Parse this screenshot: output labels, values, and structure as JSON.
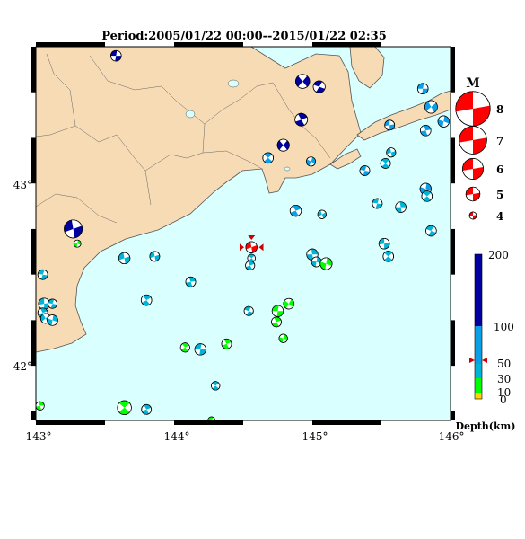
{
  "title": "Period:2005/01/22 00:00--2015/01/22 02:35",
  "axes": {
    "lon_ticks": [
      "143°",
      "144°",
      "145°",
      "146°"
    ],
    "lat_ticks": [
      "43°",
      "42°"
    ]
  },
  "colors": {
    "land": "#f7dbb4",
    "sea": "#d9ffff",
    "coast": "#555555",
    "shallow": "#00ff00",
    "mid": "#00b4d8",
    "deep": "#0aa0e8",
    "verydeep": "#0000a0",
    "highlight": "#ff0000",
    "nodal": "#ffffff"
  },
  "magnitude_legend": {
    "title": "M",
    "entries": [
      {
        "label": "8",
        "mag": 8
      },
      {
        "label": "7",
        "mag": 7
      },
      {
        "label": "6",
        "mag": 6
      },
      {
        "label": "5",
        "mag": 5
      },
      {
        "label": "4",
        "mag": 4
      }
    ]
  },
  "depth_legend": {
    "unit_label": "Depth(km)",
    "ticks": [
      "200",
      "100",
      "50",
      "30",
      "10",
      "0"
    ],
    "marker_depth": 47
  },
  "events": [
    {
      "lon": 143.58,
      "lat": 43.7,
      "depth": 140,
      "mag": 4.5,
      "rot": 20
    },
    {
      "lon": 144.93,
      "lat": 43.56,
      "depth": 150,
      "mag": 5.0,
      "rot": -30
    },
    {
      "lon": 145.05,
      "lat": 43.53,
      "depth": 160,
      "mag": 4.7,
      "rot": 40
    },
    {
      "lon": 145.8,
      "lat": 43.52,
      "depth": 70,
      "mag": 4.5,
      "rot": 200
    },
    {
      "lon": 145.86,
      "lat": 43.42,
      "depth": 70,
      "mag": 4.8,
      "rot": 160
    },
    {
      "lon": 145.95,
      "lat": 43.34,
      "depth": 70,
      "mag": 4.6,
      "rot": 120
    },
    {
      "lon": 145.82,
      "lat": 43.29,
      "depth": 70,
      "mag": 4.5,
      "rot": 90
    },
    {
      "lon": 145.56,
      "lat": 43.32,
      "depth": 70,
      "mag": 4.4,
      "rot": 10
    },
    {
      "lon": 144.92,
      "lat": 43.35,
      "depth": 150,
      "mag": 4.8,
      "rot": 80
    },
    {
      "lon": 144.79,
      "lat": 43.21,
      "depth": 150,
      "mag": 4.7,
      "rot": 150
    },
    {
      "lon": 144.68,
      "lat": 43.14,
      "depth": 70,
      "mag": 4.5,
      "rot": 60
    },
    {
      "lon": 144.99,
      "lat": 43.12,
      "depth": 70,
      "mag": 4.3,
      "rot": 130
    },
    {
      "lon": 145.38,
      "lat": 43.07,
      "depth": 70,
      "mag": 4.4,
      "rot": 30
    },
    {
      "lon": 145.57,
      "lat": 43.17,
      "depth": 45,
      "mag": 4.3,
      "rot": 180
    },
    {
      "lon": 145.53,
      "lat": 43.11,
      "depth": 45,
      "mag": 4.4,
      "rot": 60
    },
    {
      "lon": 145.82,
      "lat": 42.97,
      "depth": 70,
      "mag": 4.6,
      "rot": 120
    },
    {
      "lon": 145.83,
      "lat": 42.93,
      "depth": 45,
      "mag": 4.5,
      "rot": 60
    },
    {
      "lon": 145.47,
      "lat": 42.89,
      "depth": 45,
      "mag": 4.4,
      "rot": 30
    },
    {
      "lon": 145.64,
      "lat": 42.87,
      "depth": 45,
      "mag": 4.5,
      "rot": 100
    },
    {
      "lon": 144.88,
      "lat": 42.85,
      "depth": 70,
      "mag": 4.6,
      "rot": 80
    },
    {
      "lon": 145.07,
      "lat": 42.83,
      "depth": 45,
      "mag": 4.2,
      "rot": 170
    },
    {
      "lon": 143.27,
      "lat": 42.75,
      "depth": 160,
      "mag": 5.6,
      "rot": 0
    },
    {
      "lon": 143.3,
      "lat": 42.67,
      "depth": 25,
      "mag": 4.0,
      "rot": 120
    },
    {
      "lon": 145.86,
      "lat": 42.74,
      "depth": 45,
      "mag": 4.5,
      "rot": 40
    },
    {
      "lon": 145.52,
      "lat": 42.67,
      "depth": 45,
      "mag": 4.5,
      "rot": 10
    },
    {
      "lon": 145.55,
      "lat": 42.6,
      "depth": 45,
      "mag": 4.5,
      "rot": 60
    },
    {
      "lon": 145.0,
      "lat": 42.61,
      "depth": 45,
      "mag": 4.6,
      "rot": 100
    },
    {
      "lon": 145.03,
      "lat": 42.57,
      "depth": 45,
      "mag": 4.4,
      "rot": 120
    },
    {
      "lon": 145.1,
      "lat": 42.56,
      "depth": 25,
      "mag": 4.7,
      "rot": 120
    },
    {
      "lon": 143.64,
      "lat": 42.59,
      "depth": 45,
      "mag": 4.6,
      "rot": 0
    },
    {
      "lon": 143.86,
      "lat": 42.6,
      "depth": 45,
      "mag": 4.4,
      "rot": 180
    },
    {
      "lon": 144.56,
      "lat": 42.65,
      "depth": 47,
      "mag": 4.6,
      "rot": 0,
      "highlight": true
    },
    {
      "lon": 144.56,
      "lat": 42.59,
      "depth": 45,
      "mag": 4.1,
      "rot": 60
    },
    {
      "lon": 144.55,
      "lat": 42.55,
      "depth": 45,
      "mag": 4.3,
      "rot": 80
    },
    {
      "lon": 143.05,
      "lat": 42.5,
      "depth": 45,
      "mag": 4.4,
      "rot": 30
    },
    {
      "lon": 144.12,
      "lat": 42.46,
      "depth": 45,
      "mag": 4.4,
      "rot": 90
    },
    {
      "lon": 143.8,
      "lat": 42.36,
      "depth": 45,
      "mag": 4.5,
      "rot": 70
    },
    {
      "lon": 143.06,
      "lat": 42.34,
      "depth": 45,
      "mag": 4.6,
      "rot": 10
    },
    {
      "lon": 143.12,
      "lat": 42.34,
      "depth": 45,
      "mag": 4.3,
      "rot": 30
    },
    {
      "lon": 143.05,
      "lat": 42.29,
      "depth": 45,
      "mag": 4.4,
      "rot": 80
    },
    {
      "lon": 143.07,
      "lat": 42.26,
      "depth": 45,
      "mag": 4.4,
      "rot": 160
    },
    {
      "lon": 143.12,
      "lat": 42.25,
      "depth": 45,
      "mag": 4.5,
      "rot": 120
    },
    {
      "lon": 144.54,
      "lat": 42.3,
      "depth": 45,
      "mag": 4.3,
      "rot": 40
    },
    {
      "lon": 144.83,
      "lat": 42.34,
      "depth": 25,
      "mag": 4.5,
      "rot": 140
    },
    {
      "lon": 144.75,
      "lat": 42.3,
      "depth": 25,
      "mag": 4.6,
      "rot": 20
    },
    {
      "lon": 144.74,
      "lat": 42.24,
      "depth": 25,
      "mag": 4.4,
      "rot": 80
    },
    {
      "lon": 144.79,
      "lat": 42.15,
      "depth": 25,
      "mag": 4.2,
      "rot": 120
    },
    {
      "lon": 144.08,
      "lat": 42.1,
      "depth": 25,
      "mag": 4.3,
      "rot": 70
    },
    {
      "lon": 144.19,
      "lat": 42.09,
      "depth": 45,
      "mag": 4.6,
      "rot": 20
    },
    {
      "lon": 144.38,
      "lat": 42.12,
      "depth": 25,
      "mag": 4.4,
      "rot": 80
    },
    {
      "lon": 144.3,
      "lat": 41.89,
      "depth": 45,
      "mag": 4.2,
      "rot": 60
    },
    {
      "lon": 143.64,
      "lat": 41.77,
      "depth": 25,
      "mag": 5.0,
      "rot": 60
    },
    {
      "lon": 143.8,
      "lat": 41.76,
      "depth": 45,
      "mag": 4.4,
      "rot": 80
    },
    {
      "lon": 143.03,
      "lat": 41.78,
      "depth": 25,
      "mag": 4.2,
      "rot": 90
    },
    {
      "lon": 144.27,
      "lat": 41.7,
      "depth": 25,
      "mag": 4.0,
      "rot": 40
    }
  ]
}
